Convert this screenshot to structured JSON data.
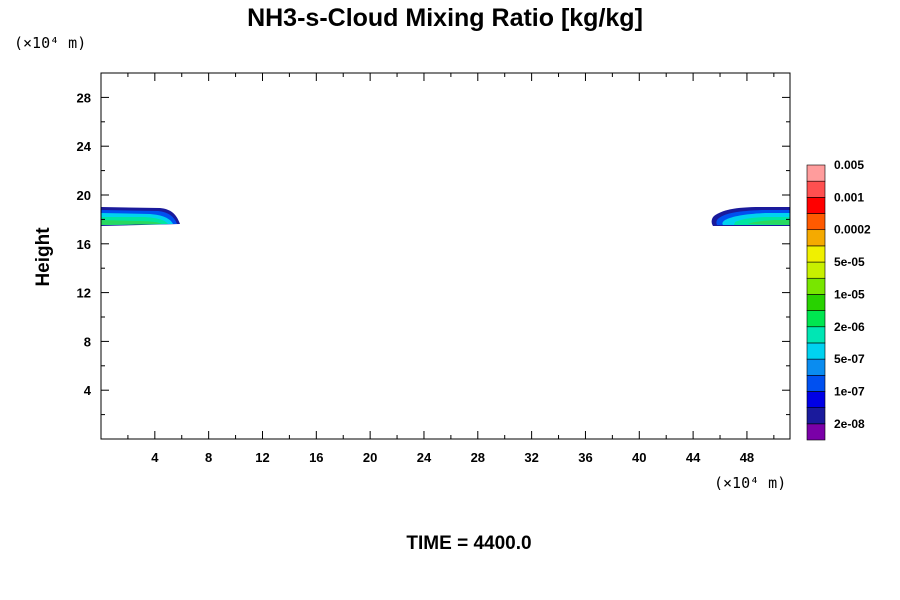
{
  "chart_data": {
    "type": "heatmap",
    "title": "NH3-s-Cloud Mixing Ratio [kg/kg]",
    "ylabel": "Height",
    "x_unit_label": "(×10⁴ m)",
    "y_unit_label": "(×10⁴ m)",
    "time_label": "TIME = 4400.0",
    "xlim": [
      0,
      51.2
    ],
    "ylim": [
      0,
      30
    ],
    "x_ticks": [
      4,
      8,
      12,
      16,
      20,
      24,
      28,
      32,
      36,
      40,
      44,
      48
    ],
    "y_ticks": [
      4,
      8,
      12,
      16,
      20,
      24,
      28
    ],
    "colorbar": {
      "colors": [
        "#7a00a8",
        "#1a1a9c",
        "#0000e6",
        "#0050f0",
        "#0a8cf0",
        "#00d2f0",
        "#00e6b4",
        "#00e650",
        "#28d200",
        "#78e600",
        "#c8f000",
        "#f0f000",
        "#f5aa00",
        "#ff5a00",
        "#ff0000",
        "#ff5050",
        "#ff9c9c"
      ],
      "labels": [
        "2e-08",
        "1e-07",
        "5e-07",
        "2e-06",
        "1e-05",
        "5e-05",
        "0.0002",
        "0.001",
        "0.005"
      ]
    },
    "cloud_layers": [
      {
        "name": "left",
        "x_range": [
          0,
          5.6
        ],
        "y_range": [
          17.4,
          18.9
        ]
      },
      {
        "name": "right",
        "x_range": [
          45.4,
          51.2
        ],
        "y_range": [
          17.4,
          18.9
        ]
      }
    ]
  }
}
